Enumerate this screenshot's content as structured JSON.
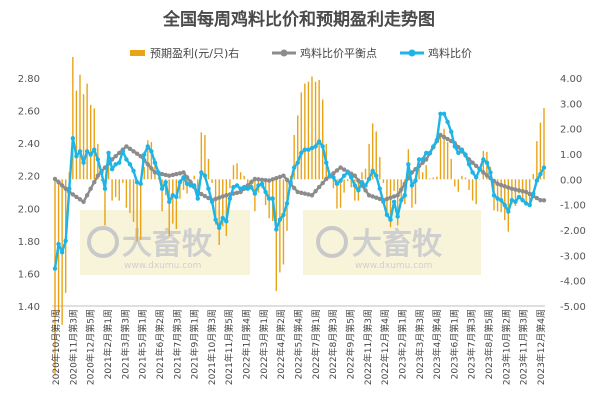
{
  "chart_data": {
    "type": "line",
    "title": "全国每周鸡料比价和预期盈利走势图",
    "legend": [
      {
        "name": "预期盈利(元/只)右",
        "kind": "bar",
        "color": "#e8a317"
      },
      {
        "name": "鸡料比价平衡点",
        "kind": "line",
        "color": "#8c8c8c"
      },
      {
        "name": "鸡料比价",
        "kind": "line",
        "color": "#1eb4e6"
      }
    ],
    "legend_position": "top-center",
    "grid": false,
    "left_axis": {
      "range": [
        1.4,
        2.8
      ],
      "ticks": [
        "1.40",
        "1.60",
        "1.80",
        "2.00",
        "2.20",
        "2.40",
        "2.60",
        "2.80"
      ]
    },
    "right_axis": {
      "range": [
        -5,
        4
      ],
      "ticks": [
        "4.00",
        "3.00",
        "2.00",
        "1.00",
        "0.00",
        "-1.00",
        "-2.00",
        "-3.00",
        "-4.00",
        "-5.00"
      ]
    },
    "x_labels": [
      "2020年10月第1周",
      "2020年11月第3周",
      "2020年12月第5周",
      "2021年2月第1周",
      "2021年3月第3周",
      "2021年5月第1周",
      "2021年6月第2周",
      "2021年7月第3周",
      "2021年9月第1周",
      "2021年10月第3周",
      "2021年11月第5周",
      "2022年1月第4周",
      "2022年3月第1周",
      "2022年4月第2周",
      "2022年5月第4周",
      "2022年7月第1周",
      "2022年8月第3周",
      "2022年9月第5周",
      "2022年11月第3周",
      "2022年12月第4周",
      "2023年2月第1周",
      "2023年3月第3周",
      "2023年4月第4周",
      "2023年6月第1周",
      "2023年7月第3周",
      "2023年8月第5周",
      "2023年10月第2周",
      "2023年11月第3周",
      "2023年12月第4周"
    ],
    "watermark": {
      "text": "大畜牧",
      "subtext": "www.dxumu.com"
    },
    "weekly_points": {
      "ratio_anchors": [
        [
          0,
          1.63
        ],
        [
          1,
          1.78
        ],
        [
          2,
          1.73
        ],
        [
          3,
          1.8
        ],
        [
          4,
          2.12
        ],
        [
          5,
          2.43
        ],
        [
          6,
          2.32
        ],
        [
          7,
          2.35
        ],
        [
          8,
          2.28
        ],
        [
          9,
          2.35
        ],
        [
          10,
          2.33
        ],
        [
          11,
          2.36
        ],
        [
          12,
          2.3
        ],
        [
          13,
          2.22
        ],
        [
          14,
          2.12
        ],
        [
          15,
          2.34
        ],
        [
          16,
          2.24
        ],
        [
          17,
          2.27
        ],
        [
          18,
          2.28
        ],
        [
          19,
          2.35
        ],
        [
          20,
          2.3
        ],
        [
          21,
          2.27
        ],
        [
          22,
          2.23
        ],
        [
          23,
          2.16
        ],
        [
          24,
          2.15
        ],
        [
          25,
          2.33
        ],
        [
          26,
          2.38
        ],
        [
          27,
          2.35
        ],
        [
          28,
          2.28
        ],
        [
          29,
          2.22
        ],
        [
          30,
          2.12
        ],
        [
          31,
          2.16
        ],
        [
          32,
          2.04
        ],
        [
          33,
          2.08
        ],
        [
          34,
          2.07
        ],
        [
          35,
          2.16
        ],
        [
          36,
          2.19
        ],
        [
          37,
          2.15
        ],
        [
          38,
          2.14
        ],
        [
          39,
          2.14
        ],
        [
          40,
          2.06
        ],
        [
          41,
          2.22
        ],
        [
          42,
          2.2
        ],
        [
          43,
          2.12
        ],
        [
          44,
          2.04
        ],
        [
          45,
          1.93
        ],
        [
          46,
          1.88
        ],
        [
          47,
          1.94
        ],
        [
          48,
          1.92
        ],
        [
          49,
          2.06
        ],
        [
          50,
          2.13
        ],
        [
          51,
          2.14
        ],
        [
          52,
          2.12
        ],
        [
          53,
          2.13
        ],
        [
          54,
          2.12
        ],
        [
          55,
          2.13
        ],
        [
          56,
          2.09
        ],
        [
          57,
          2.14
        ],
        [
          58,
          2.15
        ],
        [
          59,
          2.1
        ],
        [
          60,
          2.06
        ],
        [
          61,
          2.06
        ],
        [
          62,
          1.87
        ],
        [
          63,
          1.93
        ],
        [
          64,
          1.96
        ],
        [
          65,
          2.03
        ],
        [
          66,
          2.16
        ],
        [
          67,
          2.25
        ],
        [
          68,
          2.28
        ],
        [
          69,
          2.34
        ],
        [
          70,
          2.36
        ],
        [
          71,
          2.36
        ],
        [
          72,
          2.37
        ],
        [
          73,
          2.38
        ],
        [
          74,
          2.41
        ],
        [
          75,
          2.38
        ],
        [
          76,
          2.28
        ],
        [
          77,
          2.2
        ],
        [
          78,
          2.19
        ],
        [
          79,
          2.15
        ],
        [
          80,
          2.17
        ],
        [
          81,
          2.2
        ],
        [
          82,
          2.22
        ],
        [
          83,
          2.19
        ],
        [
          84,
          2.14
        ],
        [
          85,
          2.11
        ],
        [
          86,
          2.16
        ],
        [
          87,
          2.14
        ],
        [
          88,
          2.18
        ],
        [
          89,
          2.23
        ],
        [
          90,
          2.2
        ],
        [
          91,
          2.12
        ],
        [
          92,
          2.04
        ],
        [
          93,
          1.96
        ],
        [
          94,
          1.93
        ],
        [
          95,
          2.04
        ],
        [
          96,
          1.95
        ],
        [
          97,
          2.05
        ],
        [
          98,
          2.08
        ],
        [
          99,
          2.27
        ],
        [
          100,
          2.14
        ],
        [
          101,
          2.17
        ],
        [
          102,
          2.3
        ],
        [
          103,
          2.3
        ],
        [
          104,
          2.34
        ],
        [
          105,
          2.34
        ],
        [
          106,
          2.38
        ],
        [
          107,
          2.42
        ],
        [
          108,
          2.58
        ],
        [
          109,
          2.58
        ],
        [
          110,
          2.53
        ],
        [
          111,
          2.47
        ],
        [
          112,
          2.38
        ],
        [
          113,
          2.34
        ],
        [
          114,
          2.36
        ],
        [
          115,
          2.33
        ],
        [
          116,
          2.27
        ],
        [
          117,
          2.22
        ],
        [
          118,
          2.19
        ],
        [
          119,
          2.24
        ],
        [
          120,
          2.3
        ],
        [
          121,
          2.28
        ],
        [
          122,
          2.22
        ],
        [
          123,
          2.08
        ],
        [
          124,
          2.06
        ],
        [
          125,
          2.05
        ],
        [
          126,
          2.02
        ],
        [
          127,
          1.98
        ],
        [
          128,
          2.05
        ],
        [
          129,
          2.04
        ],
        [
          130,
          2.07
        ],
        [
          131,
          2.05
        ],
        [
          132,
          2.03
        ],
        [
          133,
          2.02
        ],
        [
          134,
          2.09
        ],
        [
          135,
          2.17
        ],
        [
          136,
          2.21
        ],
        [
          137,
          2.25
        ]
      ],
      "balance_anchors": [
        [
          0,
          2.18
        ],
        [
          4,
          2.1
        ],
        [
          8,
          2.04
        ],
        [
          12,
          2.2
        ],
        [
          16,
          2.3
        ],
        [
          20,
          2.38
        ],
        [
          24,
          2.32
        ],
        [
          28,
          2.22
        ],
        [
          32,
          2.2
        ],
        [
          36,
          2.22
        ],
        [
          40,
          2.1
        ],
        [
          44,
          2.05
        ],
        [
          48,
          2.08
        ],
        [
          52,
          2.1
        ],
        [
          56,
          2.18
        ],
        [
          60,
          2.17
        ],
        [
          64,
          2.2
        ],
        [
          68,
          2.1
        ],
        [
          72,
          2.08
        ],
        [
          76,
          2.18
        ],
        [
          80,
          2.25
        ],
        [
          84,
          2.2
        ],
        [
          88,
          2.08
        ],
        [
          92,
          2.05
        ],
        [
          96,
          2.08
        ],
        [
          100,
          2.22
        ],
        [
          104,
          2.3
        ],
        [
          108,
          2.45
        ],
        [
          112,
          2.4
        ],
        [
          116,
          2.3
        ],
        [
          120,
          2.22
        ],
        [
          124,
          2.15
        ],
        [
          128,
          2.12
        ],
        [
          132,
          2.1
        ],
        [
          136,
          2.05
        ]
      ]
    }
  }
}
